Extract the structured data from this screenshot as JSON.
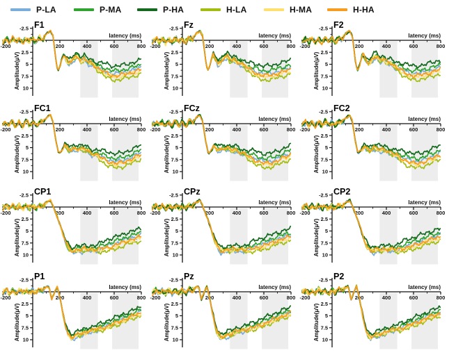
{
  "legend": {
    "items": [
      {
        "label": "P-LA",
        "color": "#79AEDC"
      },
      {
        "label": "P-MA",
        "color": "#2FA42E"
      },
      {
        "label": "P-HA",
        "color": "#14691F"
      },
      {
        "label": "H-LA",
        "color": "#A2BD0F"
      },
      {
        "label": "H-MA",
        "color": "#FFDF6E"
      },
      {
        "label": "H-HA",
        "color": "#F79C1E"
      }
    ]
  },
  "chart_data": {
    "type": "line",
    "description": "Grand-average ERP waveforms at 12 electrode sites for 6 conditions; amplitude axis inverted (negative up)",
    "panel_grid": {
      "rows": 4,
      "cols": 3
    },
    "x": {
      "label": "latency (ms)",
      "min": -200,
      "max": 800,
      "major_ticks": [
        -200,
        200,
        400,
        600,
        800
      ],
      "minor_tick_step": 100
    },
    "y": {
      "label": "Amplitude(μV)",
      "inverted": true,
      "min": -2.5,
      "max": 10,
      "major_ticks": [
        -2.5,
        2.5,
        5,
        7.5,
        10
      ],
      "tick_labels": [
        "-2.5",
        "2.5",
        "5",
        "7.5",
        "10"
      ],
      "minor_ticks": [
        -1.25,
        1.25,
        3.75,
        6.25,
        8.75
      ]
    },
    "highlight_windows_ms": [
      [
        350,
        480
      ],
      [
        585,
        780
      ]
    ],
    "highlight_color": "#ededed",
    "grid": false,
    "legend_position": "top",
    "panels": [
      {
        "title": "F1",
        "row": "F"
      },
      {
        "title": "Fz",
        "row": "F"
      },
      {
        "title": "F2",
        "row": "F"
      },
      {
        "title": "FC1",
        "row": "FC"
      },
      {
        "title": "FCz",
        "row": "FC"
      },
      {
        "title": "FC2",
        "row": "FC"
      },
      {
        "title": "CP1",
        "row": "CP"
      },
      {
        "title": "CPz",
        "row": "CP"
      },
      {
        "title": "CP2",
        "row": "CP"
      },
      {
        "title": "P1",
        "row": "P"
      },
      {
        "title": "Pz",
        "row": "P"
      },
      {
        "title": "P2",
        "row": "P"
      }
    ],
    "series": [
      {
        "name": "P-LA",
        "color": "#79AEDC",
        "mid_offset": 0.5,
        "late_offset": -0.4
      },
      {
        "name": "P-MA",
        "color": "#2FA42E",
        "mid_offset": -0.2,
        "late_offset": -1.0
      },
      {
        "name": "P-HA",
        "color": "#14691F",
        "mid_offset": -0.7,
        "late_offset": -2.0
      },
      {
        "name": "H-LA",
        "color": "#A2BD0F",
        "mid_offset": 0.3,
        "late_offset": 0.9
      },
      {
        "name": "H-MA",
        "color": "#FFDF6E",
        "mid_offset": 0.1,
        "late_offset": 0.2
      },
      {
        "name": "H-HA",
        "color": "#F79C1E",
        "mid_offset": 0.0,
        "late_offset": 0.0
      }
    ],
    "draw_order": [
      0,
      1,
      3,
      4,
      2,
      5
    ],
    "row_profiles": {
      "F": {
        "late_scale": 1.0,
        "anchors": [
          [
            -220,
            0.3
          ],
          [
            -195,
            -0.3
          ],
          [
            -170,
            0.4
          ],
          [
            -150,
            -0.5
          ],
          [
            -125,
            0.5
          ],
          [
            -100,
            -0.4
          ],
          [
            -75,
            0.6
          ],
          [
            -50,
            -0.5
          ],
          [
            -25,
            0.3
          ],
          [
            0,
            -0.4
          ],
          [
            25,
            0.4
          ],
          [
            50,
            -0.6
          ],
          [
            75,
            -0.2
          ],
          [
            100,
            -1.3
          ],
          [
            130,
            -2.0
          ],
          [
            150,
            -0.8
          ],
          [
            170,
            4.0
          ],
          [
            185,
            6.3
          ],
          [
            200,
            5.5
          ],
          [
            225,
            2.9
          ],
          [
            245,
            3.8
          ],
          [
            265,
            4.9
          ],
          [
            285,
            4.3
          ],
          [
            305,
            3.5
          ],
          [
            330,
            3.3
          ],
          [
            355,
            4.2
          ],
          [
            380,
            3.9
          ],
          [
            405,
            4.5
          ],
          [
            430,
            4.6
          ],
          [
            455,
            5.2
          ],
          [
            480,
            5.8
          ],
          [
            510,
            6.3
          ],
          [
            540,
            6.8
          ],
          [
            570,
            7.2
          ],
          [
            600,
            7.4
          ],
          [
            640,
            7.3
          ],
          [
            690,
            7.0
          ],
          [
            740,
            6.6
          ],
          [
            800,
            6.1
          ]
        ]
      },
      "FC": {
        "late_scale": 1.0,
        "anchors": [
          [
            -220,
            0.3
          ],
          [
            -195,
            -0.3
          ],
          [
            -170,
            0.4
          ],
          [
            -150,
            -0.5
          ],
          [
            -125,
            0.5
          ],
          [
            -100,
            -0.4
          ],
          [
            -75,
            0.5
          ],
          [
            -50,
            -0.5
          ],
          [
            -25,
            0.3
          ],
          [
            0,
            -0.4
          ],
          [
            25,
            0.4
          ],
          [
            50,
            -0.5
          ],
          [
            75,
            -0.2
          ],
          [
            100,
            -1.2
          ],
          [
            130,
            -1.8
          ],
          [
            150,
            -0.5
          ],
          [
            170,
            3.5
          ],
          [
            190,
            6.2
          ],
          [
            210,
            5.7
          ],
          [
            235,
            4.7
          ],
          [
            260,
            5.1
          ],
          [
            285,
            5.4
          ],
          [
            310,
            5.0
          ],
          [
            335,
            5.2
          ],
          [
            360,
            5.4
          ],
          [
            385,
            5.2
          ],
          [
            410,
            5.7
          ],
          [
            440,
            6.1
          ],
          [
            470,
            6.5
          ],
          [
            500,
            7.0
          ],
          [
            530,
            7.5
          ],
          [
            560,
            7.9
          ],
          [
            590,
            8.2
          ],
          [
            620,
            8.3
          ],
          [
            660,
            8.1
          ],
          [
            700,
            7.7
          ],
          [
            750,
            7.1
          ],
          [
            800,
            6.4
          ]
        ]
      },
      "CP": {
        "late_scale": 0.85,
        "anchors": [
          [
            -220,
            0.2
          ],
          [
            -195,
            -0.3
          ],
          [
            -170,
            0.3
          ],
          [
            -150,
            -0.4
          ],
          [
            -125,
            0.4
          ],
          [
            -100,
            -0.4
          ],
          [
            -75,
            0.4
          ],
          [
            -50,
            -0.4
          ],
          [
            -25,
            0.3
          ],
          [
            0,
            -0.3
          ],
          [
            25,
            0.3
          ],
          [
            50,
            -0.4
          ],
          [
            75,
            -0.1
          ],
          [
            100,
            -0.9
          ],
          [
            130,
            -1.5
          ],
          [
            155,
            0.2
          ],
          [
            180,
            2.0
          ],
          [
            205,
            4.0
          ],
          [
            230,
            6.3
          ],
          [
            255,
            8.0
          ],
          [
            280,
            9.0
          ],
          [
            305,
            9.1
          ],
          [
            330,
            8.8
          ],
          [
            355,
            8.9
          ],
          [
            380,
            8.7
          ],
          [
            405,
            8.8
          ],
          [
            435,
            8.7
          ],
          [
            465,
            8.9
          ],
          [
            495,
            8.8
          ],
          [
            525,
            8.6
          ],
          [
            555,
            8.4
          ],
          [
            585,
            8.2
          ],
          [
            615,
            7.9
          ],
          [
            655,
            7.5
          ],
          [
            700,
            7.0
          ],
          [
            750,
            6.6
          ],
          [
            800,
            6.2
          ]
        ]
      },
      "P": {
        "late_scale": 0.6,
        "anchors": [
          [
            -220,
            0.2
          ],
          [
            -195,
            -0.3
          ],
          [
            -170,
            0.3
          ],
          [
            -150,
            -0.4
          ],
          [
            -125,
            0.4
          ],
          [
            -100,
            -0.5
          ],
          [
            -75,
            0.4
          ],
          [
            -50,
            -0.4
          ],
          [
            -25,
            0.4
          ],
          [
            0,
            -0.5
          ],
          [
            25,
            0.3
          ],
          [
            50,
            -0.5
          ],
          [
            75,
            -0.3
          ],
          [
            100,
            -0.9
          ],
          [
            120,
            -1.2
          ],
          [
            140,
            1.6
          ],
          [
            160,
            0.2
          ],
          [
            180,
            -1.2
          ],
          [
            200,
            1.2
          ],
          [
            220,
            4.2
          ],
          [
            240,
            6.8
          ],
          [
            260,
            8.7
          ],
          [
            285,
            9.5
          ],
          [
            310,
            9.2
          ],
          [
            335,
            8.9
          ],
          [
            360,
            8.7
          ],
          [
            385,
            8.4
          ],
          [
            410,
            8.1
          ],
          [
            440,
            8.0
          ],
          [
            470,
            7.8
          ],
          [
            500,
            7.6
          ],
          [
            530,
            7.4
          ],
          [
            560,
            7.1
          ],
          [
            590,
            6.8
          ],
          [
            620,
            6.4
          ],
          [
            660,
            5.9
          ],
          [
            700,
            5.5
          ],
          [
            750,
            4.9
          ],
          [
            800,
            4.4
          ]
        ]
      }
    }
  }
}
